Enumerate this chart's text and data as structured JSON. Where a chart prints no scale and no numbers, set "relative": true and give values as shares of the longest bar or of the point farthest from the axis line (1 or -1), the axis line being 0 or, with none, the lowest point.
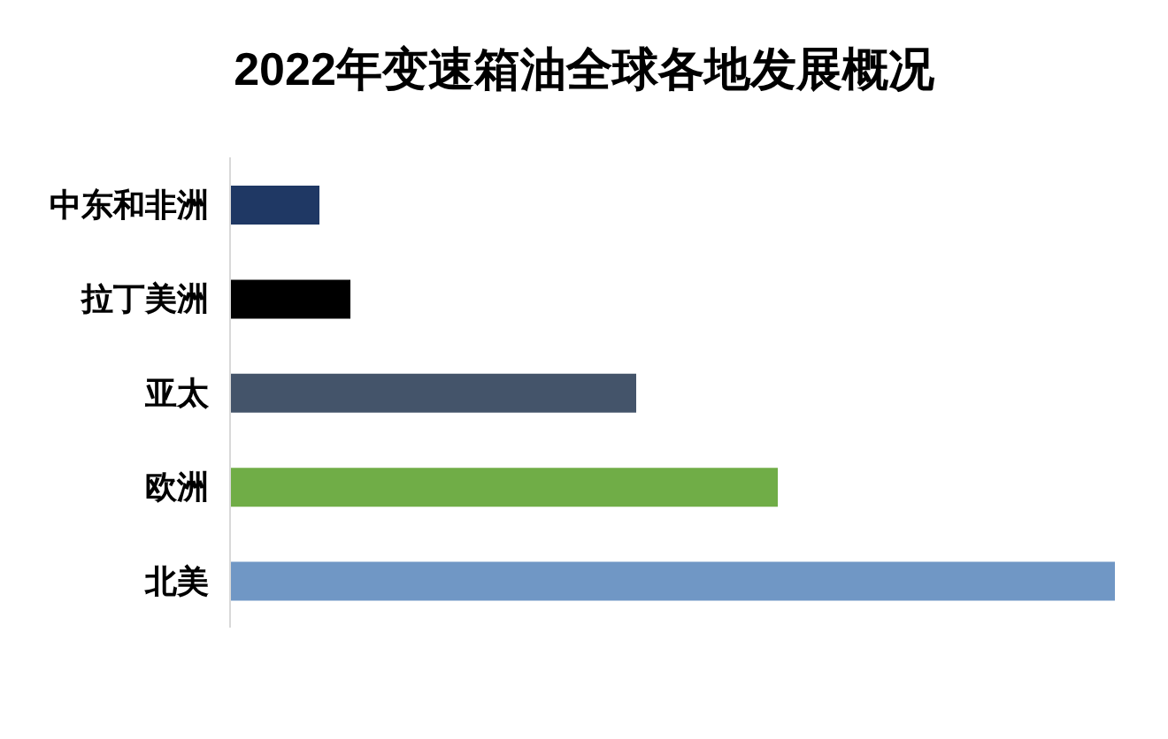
{
  "chart_data": {
    "type": "bar",
    "orientation": "horizontal",
    "title": "2022年变速箱油全球各地发展概况",
    "categories": [
      "中东和非洲",
      "拉丁美洲",
      "亚太",
      "欧洲",
      "北美"
    ],
    "values": [
      0.101,
      0.136,
      0.459,
      0.619,
      1
    ],
    "colors": [
      "#1f3864",
      "#000000",
      "#44546a",
      "#70ad47",
      "#7097c5"
    ],
    "relative": true
  }
}
